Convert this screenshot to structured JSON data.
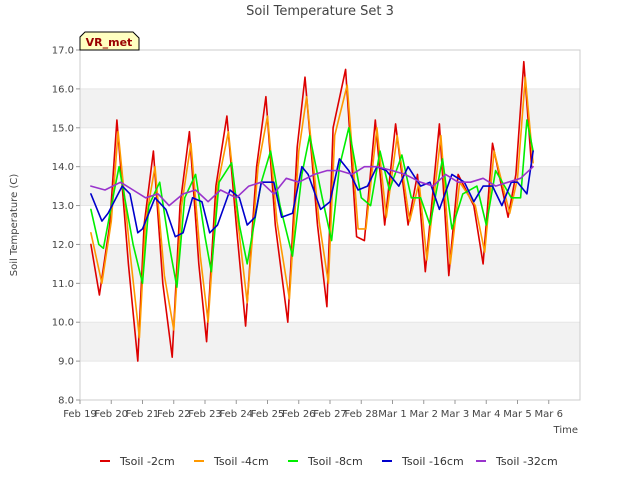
{
  "chart_data": {
    "type": "line",
    "title": "Soil Temperature Set 3",
    "xlabel": "Time",
    "ylabel": "Soil Temperature (C)",
    "ylim": [
      8.0,
      17.0
    ],
    "xlim": [
      0,
      16
    ],
    "yticks": [
      "8.0",
      "9.0",
      "10.0",
      "11.0",
      "12.0",
      "13.0",
      "14.0",
      "15.0",
      "16.0",
      "17.0"
    ],
    "xticks": [
      "Feb 19",
      "Feb 20",
      "Feb 21",
      "Feb 22",
      "Feb 23",
      "Feb 24",
      "Feb 25",
      "Feb 26",
      "Feb 27",
      "Feb 28",
      "Mar 1",
      "Mar 2",
      "Mar 3",
      "Mar 4",
      "Mar 5",
      "Mar 6"
    ],
    "grid": "horizontal-bands",
    "legend_placement": "bottom",
    "annotation": "VR_met",
    "series": [
      {
        "name": "Tsoil -2cm",
        "color": "#dd0000",
        "x": [
          0.35,
          0.62,
          0.95,
          1.18,
          1.55,
          1.85,
          2.05,
          2.35,
          2.65,
          2.95,
          3.2,
          3.5,
          3.8,
          4.05,
          4.35,
          4.7,
          5.0,
          5.3,
          5.65,
          5.95,
          6.25,
          6.65,
          6.95,
          7.2,
          7.6,
          7.9,
          8.1,
          8.5,
          8.85,
          9.1,
          9.45,
          9.75,
          10.1,
          10.5,
          10.8,
          11.05,
          11.5,
          11.8,
          12.1,
          12.6,
          12.9,
          13.2,
          13.7,
          13.95,
          14.2,
          14.45
        ],
        "y": [
          12.0,
          10.7,
          12.5,
          15.2,
          11.5,
          9.0,
          12.5,
          14.4,
          11.0,
          9.1,
          13.0,
          14.9,
          11.5,
          9.5,
          13.5,
          15.3,
          12.5,
          9.9,
          14.0,
          15.8,
          12.5,
          10.0,
          14.5,
          16.3,
          12.5,
          10.4,
          15.0,
          16.5,
          12.2,
          12.1,
          15.2,
          12.5,
          15.1,
          12.5,
          13.8,
          11.3,
          15.1,
          11.2,
          13.8,
          13.0,
          11.5,
          14.6,
          12.7,
          13.8,
          16.7,
          14.0
        ]
      },
      {
        "name": "Tsoil -4cm",
        "color": "#ff9900",
        "x": [
          0.35,
          0.7,
          1.0,
          1.22,
          1.6,
          1.9,
          2.1,
          2.4,
          2.7,
          3.0,
          3.25,
          3.55,
          3.85,
          4.1,
          4.4,
          4.75,
          5.05,
          5.35,
          5.7,
          6.0,
          6.3,
          6.7,
          7.0,
          7.25,
          7.65,
          7.95,
          8.15,
          8.55,
          8.9,
          9.15,
          9.5,
          9.8,
          10.15,
          10.55,
          10.85,
          11.1,
          11.55,
          11.85,
          12.15,
          12.65,
          12.95,
          13.25,
          13.75,
          14.0,
          14.25,
          14.5
        ],
        "y": [
          12.3,
          11.0,
          12.6,
          14.9,
          11.8,
          9.6,
          12.6,
          14.0,
          11.2,
          9.8,
          13.0,
          14.6,
          11.7,
          10.0,
          13.5,
          14.9,
          12.6,
          10.5,
          14.0,
          15.3,
          12.6,
          10.6,
          14.4,
          15.8,
          12.6,
          11.0,
          14.8,
          16.1,
          12.4,
          12.4,
          15.0,
          12.7,
          14.8,
          12.6,
          13.6,
          11.6,
          14.8,
          11.5,
          13.6,
          13.0,
          11.8,
          14.4,
          12.8,
          13.7,
          16.3,
          14.1
        ]
      },
      {
        "name": "Tsoil -8cm",
        "color": "#00ee00",
        "x": [
          0.35,
          0.6,
          0.75,
          1.1,
          1.25,
          1.7,
          2.0,
          2.2,
          2.55,
          2.85,
          3.1,
          3.35,
          3.7,
          4.0,
          4.2,
          4.45,
          4.85,
          5.1,
          5.35,
          5.8,
          6.1,
          6.4,
          6.8,
          7.1,
          7.35,
          7.75,
          8.05,
          8.3,
          8.6,
          9.0,
          9.3,
          9.6,
          9.9,
          10.3,
          10.6,
          10.9,
          11.2,
          11.6,
          11.9,
          12.25,
          12.7,
          13.0,
          13.3,
          13.8,
          14.1,
          14.3,
          14.5
        ],
        "y": [
          12.9,
          12.0,
          11.9,
          13.4,
          14.0,
          12.0,
          11.0,
          13.0,
          13.6,
          12.0,
          10.9,
          13.2,
          13.8,
          12.2,
          11.3,
          13.6,
          14.1,
          12.5,
          11.5,
          13.6,
          14.4,
          13.0,
          11.7,
          13.8,
          14.8,
          13.2,
          12.1,
          14.0,
          15.0,
          13.2,
          13.0,
          14.4,
          13.4,
          14.3,
          13.2,
          13.2,
          12.5,
          14.2,
          12.4,
          13.3,
          13.5,
          12.5,
          13.9,
          13.2,
          13.2,
          15.2,
          14.4
        ]
      },
      {
        "name": "Tsoil -16cm",
        "color": "#0000cc",
        "x": [
          0.35,
          0.7,
          0.9,
          1.35,
          1.6,
          1.85,
          2.0,
          2.4,
          2.75,
          3.05,
          3.3,
          3.6,
          3.9,
          4.15,
          4.4,
          4.8,
          5.1,
          5.35,
          5.6,
          5.8,
          6.2,
          6.45,
          6.8,
          7.1,
          7.3,
          7.7,
          8.0,
          8.3,
          8.6,
          8.9,
          9.2,
          9.5,
          9.8,
          10.2,
          10.5,
          10.9,
          11.2,
          11.5,
          11.9,
          12.3,
          12.6,
          12.9,
          13.2,
          13.5,
          13.8,
          14.0,
          14.3,
          14.5
        ],
        "y": [
          13.3,
          12.6,
          12.8,
          13.5,
          13.3,
          12.3,
          12.4,
          13.2,
          12.9,
          12.2,
          12.3,
          13.2,
          13.1,
          12.3,
          12.5,
          13.4,
          13.2,
          12.5,
          12.7,
          13.6,
          13.6,
          12.7,
          12.8,
          14.0,
          13.8,
          12.9,
          13.1,
          14.2,
          13.9,
          13.4,
          13.5,
          14.0,
          13.9,
          13.5,
          14.0,
          13.5,
          13.6,
          12.9,
          13.8,
          13.6,
          13.1,
          13.5,
          13.5,
          13.0,
          13.6,
          13.6,
          13.3,
          14.4
        ]
      },
      {
        "name": "Tsoil -32cm",
        "color": "#9933cc",
        "x": [
          0.35,
          0.8,
          1.3,
          1.7,
          2.1,
          2.5,
          2.85,
          3.3,
          3.7,
          4.1,
          4.5,
          5.0,
          5.4,
          5.8,
          6.2,
          6.6,
          7.0,
          7.5,
          7.9,
          8.3,
          8.7,
          9.1,
          9.5,
          10.0,
          10.4,
          10.9,
          11.3,
          11.7,
          12.1,
          12.5,
          12.9,
          13.3,
          13.7,
          14.1,
          14.5
        ],
        "y": [
          13.5,
          13.4,
          13.6,
          13.4,
          13.2,
          13.3,
          13.0,
          13.3,
          13.4,
          13.1,
          13.4,
          13.2,
          13.5,
          13.6,
          13.3,
          13.7,
          13.6,
          13.8,
          13.9,
          13.9,
          13.8,
          14.0,
          14.0,
          13.9,
          13.8,
          13.6,
          13.5,
          13.8,
          13.6,
          13.6,
          13.7,
          13.5,
          13.6,
          13.7,
          14.0
        ]
      }
    ]
  }
}
